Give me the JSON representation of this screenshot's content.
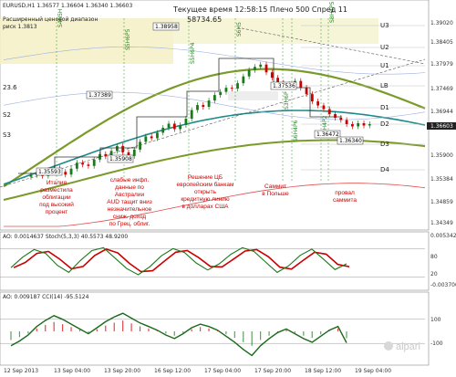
{
  "header": {
    "symbol_line": "EURUSD,H1  1.36577 1.36604 1.36340 1.36603",
    "range_label": "Расширенный ценовой диапазон",
    "risk_label": "риск 1.3813",
    "server_time": "Текущее время 12:58:15 Плечо 500 Спред 11",
    "balance": "58734.65"
  },
  "price_boxes": [
    "1.37389",
    "1.38958",
    "1.35908",
    "1.35593",
    "1.37536",
    "1.36472",
    "1.36340"
  ],
  "pivot_labels": [
    "U3",
    "U2",
    "U1",
    "LB",
    "D1",
    "D2",
    "D3",
    "D4"
  ],
  "pivot_left": [
    "23.6",
    "S2",
    "S3"
  ],
  "vertical_labels": [
    "S4N5H",
    "S5H6P5",
    "S5H6P4",
    "S6H5",
    "S3H6P",
    "S6H4P6",
    "S6H4P2",
    "S8H4P5"
  ],
  "annotations": [
    {
      "lines": [
        "Италия",
        "разместила",
        "облигации",
        "под высокий",
        "процент"
      ]
    },
    {
      "lines": [
        "слабые инфл.",
        "данные по",
        "Австралии",
        "AUD тащит вниз",
        "незначительное",
        "сниж. доход",
        "по Грец. облиг."
      ]
    },
    {
      "lines": [
        "Решение ЦБ",
        "европейским банкам",
        "открыть",
        "кредитную линию",
        "в долларах США"
      ]
    },
    {
      "lines": [
        "Саммит",
        "в Польше"
      ]
    },
    {
      "lines": [
        "провал",
        "саммита"
      ]
    }
  ],
  "price_axis": [
    "1.39020",
    "1.38405",
    "1.37979",
    "1.37469",
    "1.36944",
    "1.36603",
    "1.35900",
    "1.35384",
    "1.34859",
    "1.34349"
  ],
  "stoch_panel": {
    "label": "AO: 0.0014637  Stoch(5,3,3)  40.5573 48.9200",
    "axis": [
      "0.0053429",
      "80",
      "20",
      "-0.0037001"
    ]
  },
  "cci_panel": {
    "label": "AO: 0.009187  CCI(14) -95.5124",
    "axis": [
      "100",
      "-100"
    ]
  },
  "time_axis": [
    "12 Sep 2013",
    "13 Sep 04:00",
    "13 Sep 20:00",
    "16 Sep 12:00",
    "17 Sep 04:00",
    "17 Sep 20:00",
    "18 Sep 12:00",
    "19 Sep 04:00"
  ],
  "watermark": "alpari",
  "chart_data": {
    "type": "line",
    "title": "EURUSD,H1",
    "candles_close": [
      1.3548,
      1.3552,
      1.3546,
      1.3558,
      1.3563,
      1.3555,
      1.3549,
      1.3562,
      1.3575,
      1.3571,
      1.3568,
      1.3582,
      1.3594,
      1.3589,
      1.3601,
      1.3612,
      1.3598,
      1.359,
      1.3604,
      1.3621,
      1.3633,
      1.3629,
      1.3641,
      1.3652,
      1.3661,
      1.3649,
      1.3658,
      1.3672,
      1.3691,
      1.3702,
      1.3698,
      1.3712,
      1.3724,
      1.3731,
      1.374,
      1.3738,
      1.375,
      1.3765,
      1.3779,
      1.3786,
      1.3791,
      1.3774,
      1.3762,
      1.3751,
      1.3742,
      1.3748,
      1.3755,
      1.374,
      1.3726,
      1.371,
      1.3701,
      1.3693,
      1.3682,
      1.3674,
      1.3669,
      1.366,
      1.3655,
      1.3662,
      1.3657,
      1.366
    ],
    "ylim": [
      1.3435,
      1.3905
    ],
    "stoch_values": [
      40,
      62,
      78,
      70,
      45,
      30,
      55,
      76,
      82,
      60,
      38,
      25,
      42,
      65,
      80,
      72,
      50,
      35,
      48,
      68,
      82,
      74,
      52,
      30,
      44,
      66,
      79,
      58,
      36,
      48
    ],
    "stoch_ylim": [
      0,
      100
    ],
    "cci_values": [
      -120,
      -80,
      -30,
      40,
      90,
      130,
      100,
      60,
      20,
      -20,
      30,
      80,
      120,
      150,
      110,
      70,
      40,
      10,
      -30,
      -60,
      -20,
      30,
      60,
      40,
      10,
      -40,
      -90,
      -150,
      -200,
      -120,
      -60,
      -10,
      20,
      -20,
      -60,
      -90,
      -40,
      10,
      40,
      -95
    ],
    "cci_ylim": [
      -250,
      250
    ]
  }
}
